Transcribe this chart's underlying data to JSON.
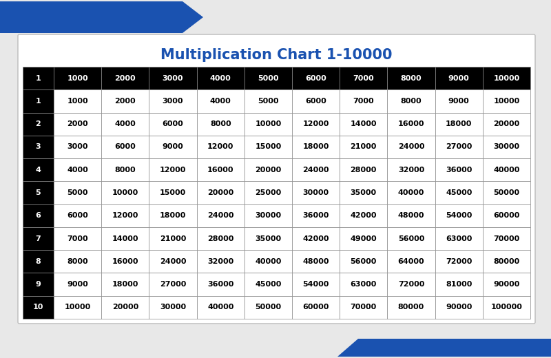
{
  "title": "Multiplication Chart 1-10000",
  "title_color": "#1a52b0",
  "title_fontsize": 15,
  "rows": [
    1,
    2,
    3,
    4,
    5,
    6,
    7,
    8,
    9,
    10
  ],
  "cols": [
    1000,
    2000,
    3000,
    4000,
    5000,
    6000,
    7000,
    8000,
    9000,
    10000
  ],
  "header_bg": "#000000",
  "header_text_color": "#ffffff",
  "row_label_bg": "#000000",
  "row_label_text_color": "#ffffff",
  "cell_bg": "#ffffff",
  "cell_text_color": "#000000",
  "bg_color": "#ffffff",
  "page_bg": "#e8e8e8",
  "arrow_color": "#1a52b0",
  "card_border_color": "#bbbbbb"
}
